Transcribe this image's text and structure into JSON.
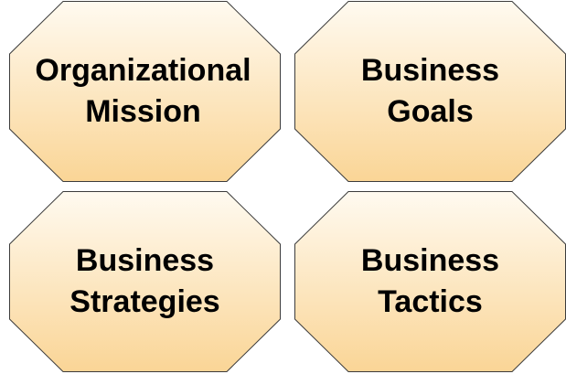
{
  "colors": {
    "fill_top": "#fffaf0",
    "fill_bottom": "#fad596",
    "stroke": "#3c3c3c",
    "text": "#000000"
  },
  "boxes": [
    {
      "line1": "Organizational",
      "line2": "Mission"
    },
    {
      "line1": "Business",
      "line2": "Goals"
    },
    {
      "line1": "Business",
      "line2": "Strategies"
    },
    {
      "line1": "Business",
      "line2": "Tactics"
    }
  ]
}
